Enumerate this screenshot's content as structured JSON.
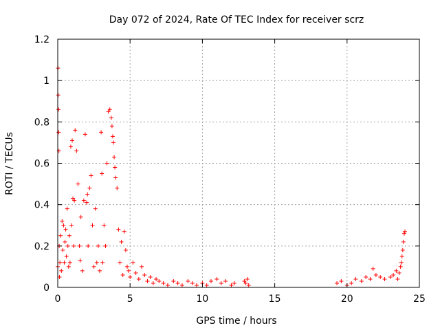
{
  "chart_data": {
    "type": "scatter",
    "title": "Day 072 of 2024, Rate Of TEC Index for receiver scrz",
    "xlabel": "GPS time / hours",
    "ylabel": "ROTI / TECUs",
    "xlim": [
      0,
      25
    ],
    "ylim": [
      0,
      1.2
    ],
    "x_ticks": [
      0,
      5,
      10,
      15,
      20,
      25
    ],
    "y_ticks": [
      0,
      0.2,
      0.4,
      0.6,
      0.8,
      1,
      1.2
    ],
    "x_tick_labels": [
      "0",
      "5",
      "10",
      "15",
      "20",
      "25"
    ],
    "y_tick_labels": [
      "0",
      "0.2",
      "0.4",
      "0.6",
      "0.8",
      "1",
      "1.2"
    ],
    "grid": true,
    "marker": "+",
    "colors": {
      "series": "#ff0000",
      "grid": "#a0a0a0",
      "axes": "#000000"
    },
    "series": [
      {
        "name": "ROTI",
        "x": [
          0.0,
          0.02,
          0.03,
          0.05,
          0.06,
          0.08,
          0.1,
          0.12,
          0.15,
          0.2,
          0.25,
          0.3,
          0.35,
          0.4,
          0.45,
          0.5,
          0.55,
          0.6,
          0.65,
          0.7,
          0.75,
          0.8,
          0.85,
          0.9,
          0.95,
          1.0,
          1.05,
          1.1,
          1.15,
          1.2,
          1.3,
          1.4,
          1.5,
          1.55,
          1.6,
          1.7,
          1.8,
          1.9,
          2.0,
          2.05,
          2.1,
          2.2,
          2.3,
          2.4,
          2.5,
          2.6,
          2.7,
          2.8,
          2.9,
          3.0,
          3.05,
          3.1,
          3.2,
          3.3,
          3.4,
          3.5,
          3.6,
          3.7,
          3.75,
          3.8,
          3.85,
          3.9,
          3.95,
          4.0,
          4.1,
          4.2,
          4.3,
          4.4,
          4.5,
          4.6,
          4.7,
          4.8,
          4.9,
          5.0,
          5.2,
          5.4,
          5.6,
          5.8,
          6.0,
          6.2,
          6.4,
          6.6,
          6.8,
          7.0,
          7.3,
          7.6,
          8.0,
          8.3,
          8.6,
          9.0,
          9.3,
          9.6,
          10.0,
          10.3,
          10.6,
          11.0,
          11.3,
          11.6,
          12.0,
          12.2,
          12.9,
          13.0,
          13.1,
          13.2,
          19.3,
          19.6,
          20.0,
          20.3,
          20.6,
          21.0,
          21.3,
          21.6,
          21.8,
          22.0,
          22.3,
          22.6,
          23.0,
          23.2,
          23.4,
          23.5,
          23.6,
          23.7,
          23.75,
          23.8,
          23.85,
          23.9,
          23.95,
          24.0
        ],
        "y": [
          0.1,
          1.06,
          0.93,
          0.86,
          0.75,
          0.66,
          0.2,
          0.05,
          0.12,
          0.25,
          0.08,
          0.32,
          0.18,
          0.3,
          0.12,
          0.22,
          0.28,
          0.15,
          0.38,
          0.2,
          0.1,
          0.25,
          0.12,
          0.68,
          0.3,
          0.71,
          0.43,
          0.2,
          0.42,
          0.76,
          0.66,
          0.5,
          0.2,
          0.13,
          0.34,
          0.08,
          0.42,
          0.74,
          0.41,
          0.45,
          0.2,
          0.48,
          0.54,
          0.3,
          0.1,
          0.38,
          0.12,
          0.2,
          0.08,
          0.75,
          0.55,
          0.12,
          0.3,
          0.2,
          0.6,
          0.85,
          0.86,
          0.82,
          0.78,
          0.73,
          0.7,
          0.63,
          0.58,
          0.53,
          0.48,
          0.28,
          0.12,
          0.22,
          0.06,
          0.27,
          0.18,
          0.1,
          0.08,
          0.05,
          0.12,
          0.07,
          0.04,
          0.1,
          0.06,
          0.03,
          0.05,
          0.02,
          0.04,
          0.03,
          0.02,
          0.01,
          0.03,
          0.02,
          0.01,
          0.03,
          0.02,
          0.01,
          0.02,
          0.01,
          0.03,
          0.04,
          0.02,
          0.03,
          0.01,
          0.02,
          0.03,
          0.02,
          0.04,
          0.01,
          0.02,
          0.03,
          0.01,
          0.02,
          0.04,
          0.03,
          0.05,
          0.04,
          0.09,
          0.06,
          0.05,
          0.04,
          0.05,
          0.06,
          0.08,
          0.04,
          0.07,
          0.1,
          0.12,
          0.15,
          0.18,
          0.22,
          0.26,
          0.27
        ]
      }
    ]
  }
}
